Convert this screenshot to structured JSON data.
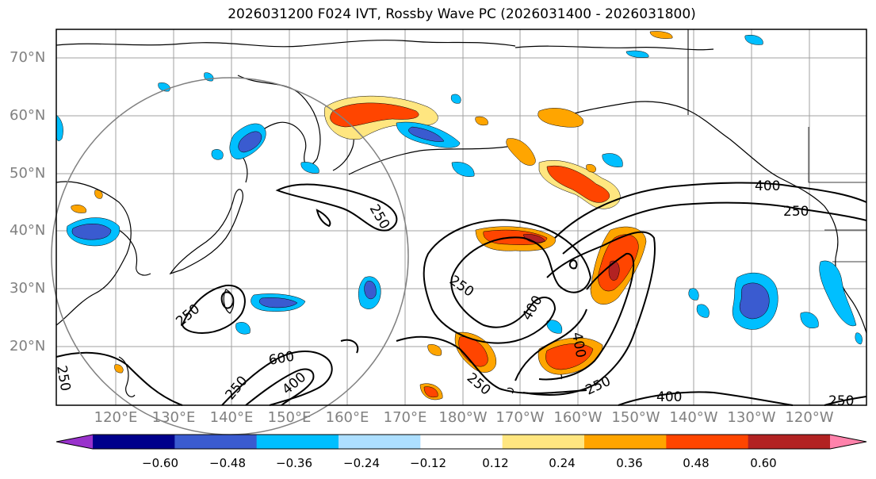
{
  "title": "2026031200 F024 IVT, Rossby Wave PC (2026031400 - 2026031800)",
  "lat_labels": [
    "70°N",
    "60°N",
    "50°N",
    "40°N",
    "30°N",
    "20°N"
  ],
  "lon_labels": [
    "120°E",
    "130°E",
    "140°E",
    "150°E",
    "160°E",
    "170°E",
    "180°W",
    "170°W",
    "160°W",
    "150°W",
    "140°W",
    "130°W",
    "120°W"
  ],
  "colorbar": {
    "colors": [
      "#9932CC",
      "#00008B",
      "#3A5BD0",
      "#00BFFF",
      "#ADDFFF",
      "#FFFFFF",
      "#FFE680",
      "#FFA500",
      "#FF4500",
      "#B22222",
      "#FF82AB"
    ],
    "tick_labels": [
      "−0.60",
      "−0.48",
      "−0.36",
      "−0.24",
      "−0.12",
      "0.12",
      "0.24",
      "0.36",
      "0.48",
      "0.60"
    ]
  },
  "contour_labels": [
    "400",
    "250",
    "250",
    "250",
    "400",
    "400",
    "250",
    "250",
    "600",
    "400",
    "250",
    "250",
    "400",
    "250",
    "250"
  ]
}
